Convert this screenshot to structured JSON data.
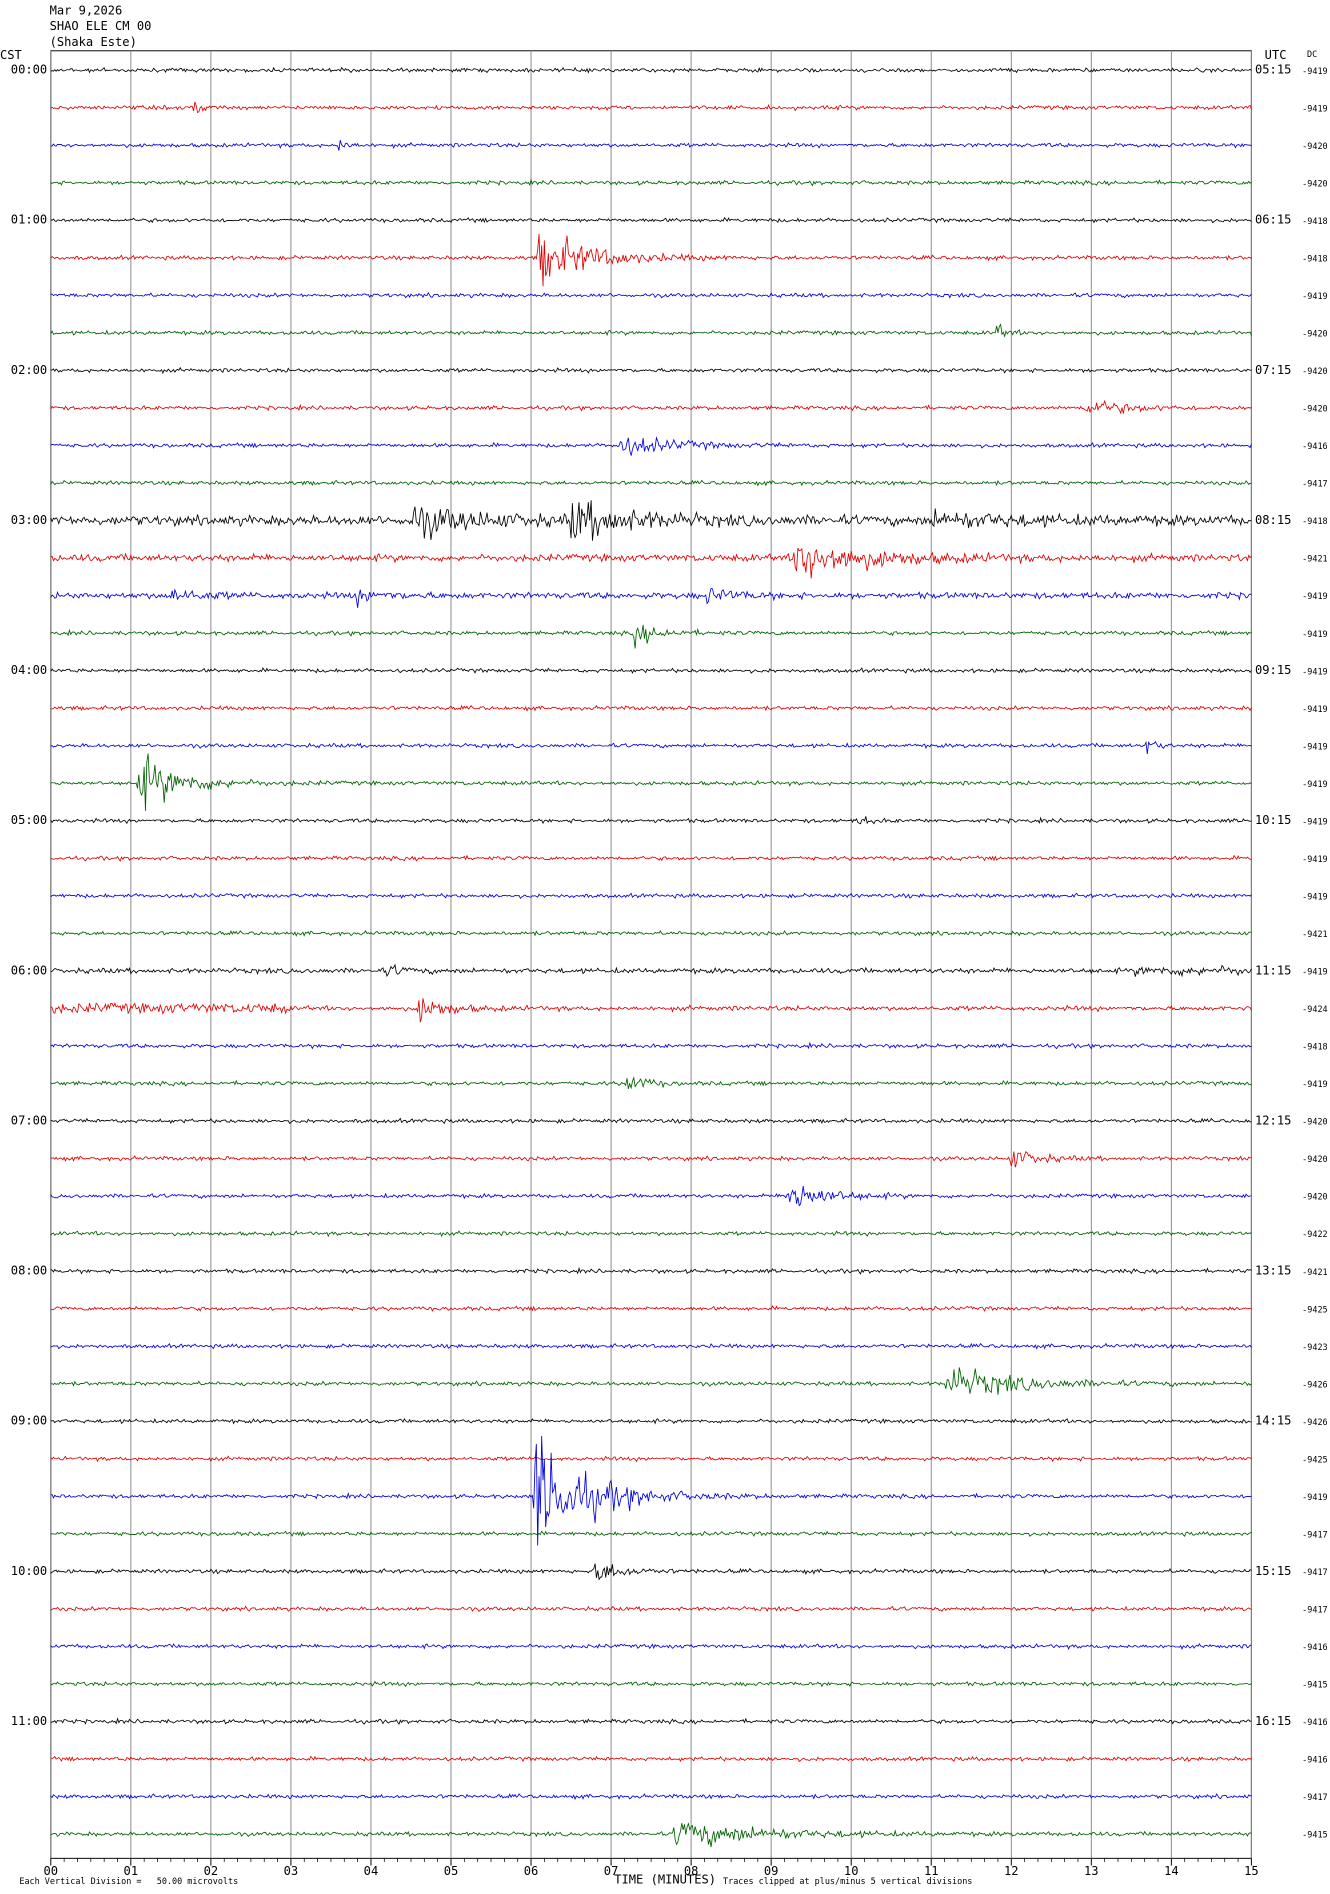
{
  "header": {
    "date": "Mar 9,2026",
    "station": "SHAO ELE CM 00",
    "location": "(Shaka Este)"
  },
  "left_axis_title": "CST",
  "right_axis_title": "UTC",
  "dc_title": "DC",
  "cst_labels": [
    "00:00",
    "01:00",
    "02:00",
    "03:00",
    "04:00",
    "05:00",
    "06:00",
    "07:00",
    "08:00",
    "09:00",
    "10:00",
    "11:00"
  ],
  "utc_labels": [
    "05:15",
    "06:15",
    "07:15",
    "08:15",
    "09:15",
    "10:15",
    "11:15",
    "12:15",
    "13:15",
    "14:15",
    "15:15",
    "16:15"
  ],
  "dc_values": [
    -9419,
    -9419,
    -9420,
    -9420,
    -9418,
    -9418,
    -9419,
    -9420,
    -9420,
    -9420,
    -9416,
    -9417,
    -9418,
    -9421,
    -9419,
    -9419,
    -9419,
    -9419,
    -9419,
    -9419,
    -9419,
    -9419,
    -9419,
    -9421,
    -9419,
    -9424,
    -9418,
    -9419,
    -9420,
    -9420,
    -9420,
    -9422,
    -9421,
    -9425,
    -9423,
    -9426,
    -9426,
    -9425,
    -9419,
    -9417,
    -9417,
    -9417,
    -9416,
    -9415,
    -9416,
    -9416,
    -9417,
    -9415
  ],
  "x_axis": {
    "title": "TIME (MINUTES)",
    "ticks": [
      "00",
      "01",
      "02",
      "03",
      "04",
      "05",
      "06",
      "07",
      "08",
      "09",
      "10",
      "11",
      "12",
      "13",
      "14",
      "15"
    ]
  },
  "footer": {
    "scale_note": "Each Vertical Division =   50.00 microvolts",
    "clip_note": "Traces clipped at plus/minus 5 vertical divisions"
  },
  "trace_colors": [
    "#000000",
    "#e00000",
    "#0000e0",
    "#006000"
  ]
}
